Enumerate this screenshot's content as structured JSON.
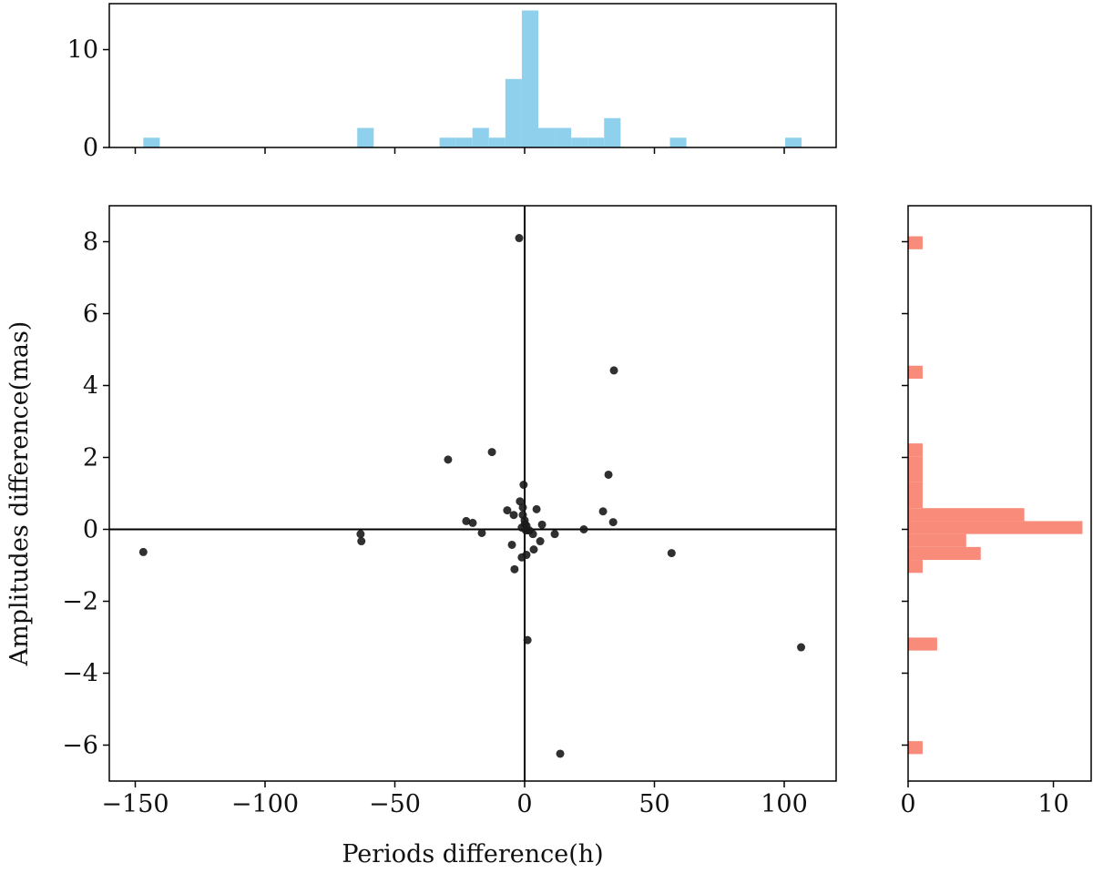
{
  "chart_data": [
    {
      "type": "histogram",
      "orientation": "vertical",
      "color": "#8fd0ec",
      "bins": [
        -146.9,
        -140.56,
        -134.22,
        -127.88,
        -121.54,
        -115.2,
        -108.86,
        -102.52,
        -96.18,
        -89.84,
        -83.5,
        -77.16,
        -70.82,
        -64.48,
        -58.14,
        -51.8,
        -45.46,
        -39.12,
        -32.78,
        -26.44,
        -20.1,
        -13.76,
        -7.42,
        -1.08,
        5.26,
        11.6,
        17.94,
        24.28,
        30.62,
        36.96,
        43.3,
        49.64,
        55.98,
        62.32,
        68.66,
        75.0,
        81.34,
        87.68,
        94.02,
        100.36,
        106.7
      ],
      "values": [
        1,
        0,
        0,
        0,
        0,
        0,
        0,
        0,
        0,
        0,
        0,
        0,
        0,
        2,
        0,
        0,
        0,
        0,
        1,
        1,
        2,
        1,
        7,
        14,
        2,
        2,
        1,
        1,
        3,
        0,
        0,
        0,
        1,
        0,
        0,
        0,
        0,
        0,
        0,
        1
      ],
      "xlim": [
        -160,
        120
      ],
      "ylim": [
        0,
        14.7
      ],
      "yticks": [
        0,
        10
      ]
    },
    {
      "type": "scatter",
      "xlabel": "Periods difference(h)",
      "ylabel": "Amplitudes difference(mas)",
      "color": "#1a1a1a",
      "x": [
        -146.9,
        -63.2,
        -62.9,
        -29.5,
        -12.6,
        -2.1,
        -22.5,
        -20.0,
        -16.5,
        -6.7,
        -4.2,
        -1.8,
        -0.4,
        -0.7,
        -0.7,
        0,
        -1.1,
        0.7,
        1.8,
        3.2,
        4.6,
        6.7,
        6.0,
        3.5,
        0.7,
        -1.1,
        -4.9,
        -3.9,
        1.1,
        11.6,
        22.8,
        30.2,
        32.3,
        34.1,
        34.4,
        56.6,
        106.5,
        13.7,
        0.1,
        0.5
      ],
      "values": [
        -0.63,
        -0.13,
        -0.33,
        1.94,
        2.15,
        8.1,
        0.23,
        0.18,
        -0.1,
        0.53,
        0.4,
        0.78,
        1.24,
        0.61,
        0.4,
        0.25,
        0.05,
        0.1,
        -0.03,
        -0.13,
        0.56,
        0.13,
        -0.33,
        -0.56,
        -0.71,
        -0.78,
        -0.43,
        -1.11,
        -3.08,
        -0.13,
        0.0,
        0.5,
        1.52,
        0.2,
        4.42,
        -0.66,
        -3.28,
        -6.24,
        0.15,
        -0.03
      ],
      "xlim": [
        -160,
        120
      ],
      "ylim": [
        -7,
        9
      ],
      "xticks": [
        {
          "value": -150,
          "label": "−150"
        },
        {
          "value": -100,
          "label": "−100"
        },
        {
          "value": -50,
          "label": "−50"
        },
        0,
        50,
        100
      ],
      "yticks": [
        {
          "value": -6,
          "label": "−6"
        },
        {
          "value": -4,
          "label": "−4"
        },
        {
          "value": -2,
          "label": "−2"
        },
        0,
        2,
        4,
        6,
        8
      ],
      "reference_lines": {
        "x": 0,
        "y": 0
      }
    },
    {
      "type": "histogram",
      "orientation": "horizontal",
      "color": "#f98b7a",
      "bins": [
        -6.25,
        -5.89,
        -5.53,
        -5.17,
        -4.81,
        -4.45,
        -4.09,
        -3.73,
        -3.37,
        -3.01,
        -2.65,
        -2.29,
        -1.93,
        -1.57,
        -1.21,
        -0.85,
        -0.49,
        -0.13,
        0.23,
        0.59,
        0.95,
        1.31,
        1.67,
        2.03,
        2.39,
        2.75,
        3.11,
        3.47,
        3.83,
        4.19,
        4.55,
        4.91,
        5.27,
        5.63,
        5.99,
        6.35,
        6.71,
        7.07,
        7.43,
        7.79,
        8.15
      ],
      "values": [
        1,
        0,
        0,
        0,
        0,
        0,
        0,
        0,
        2,
        0,
        0,
        0,
        0,
        0,
        1,
        5,
        4,
        12,
        8,
        1,
        1,
        1,
        1,
        1,
        0,
        0,
        0,
        0,
        0,
        1,
        0,
        0,
        0,
        0,
        0,
        0,
        0,
        0,
        0,
        1
      ],
      "xlim": [
        0,
        12.6
      ],
      "xticks": [
        0,
        10
      ],
      "ylim": [
        -7,
        9
      ]
    }
  ]
}
